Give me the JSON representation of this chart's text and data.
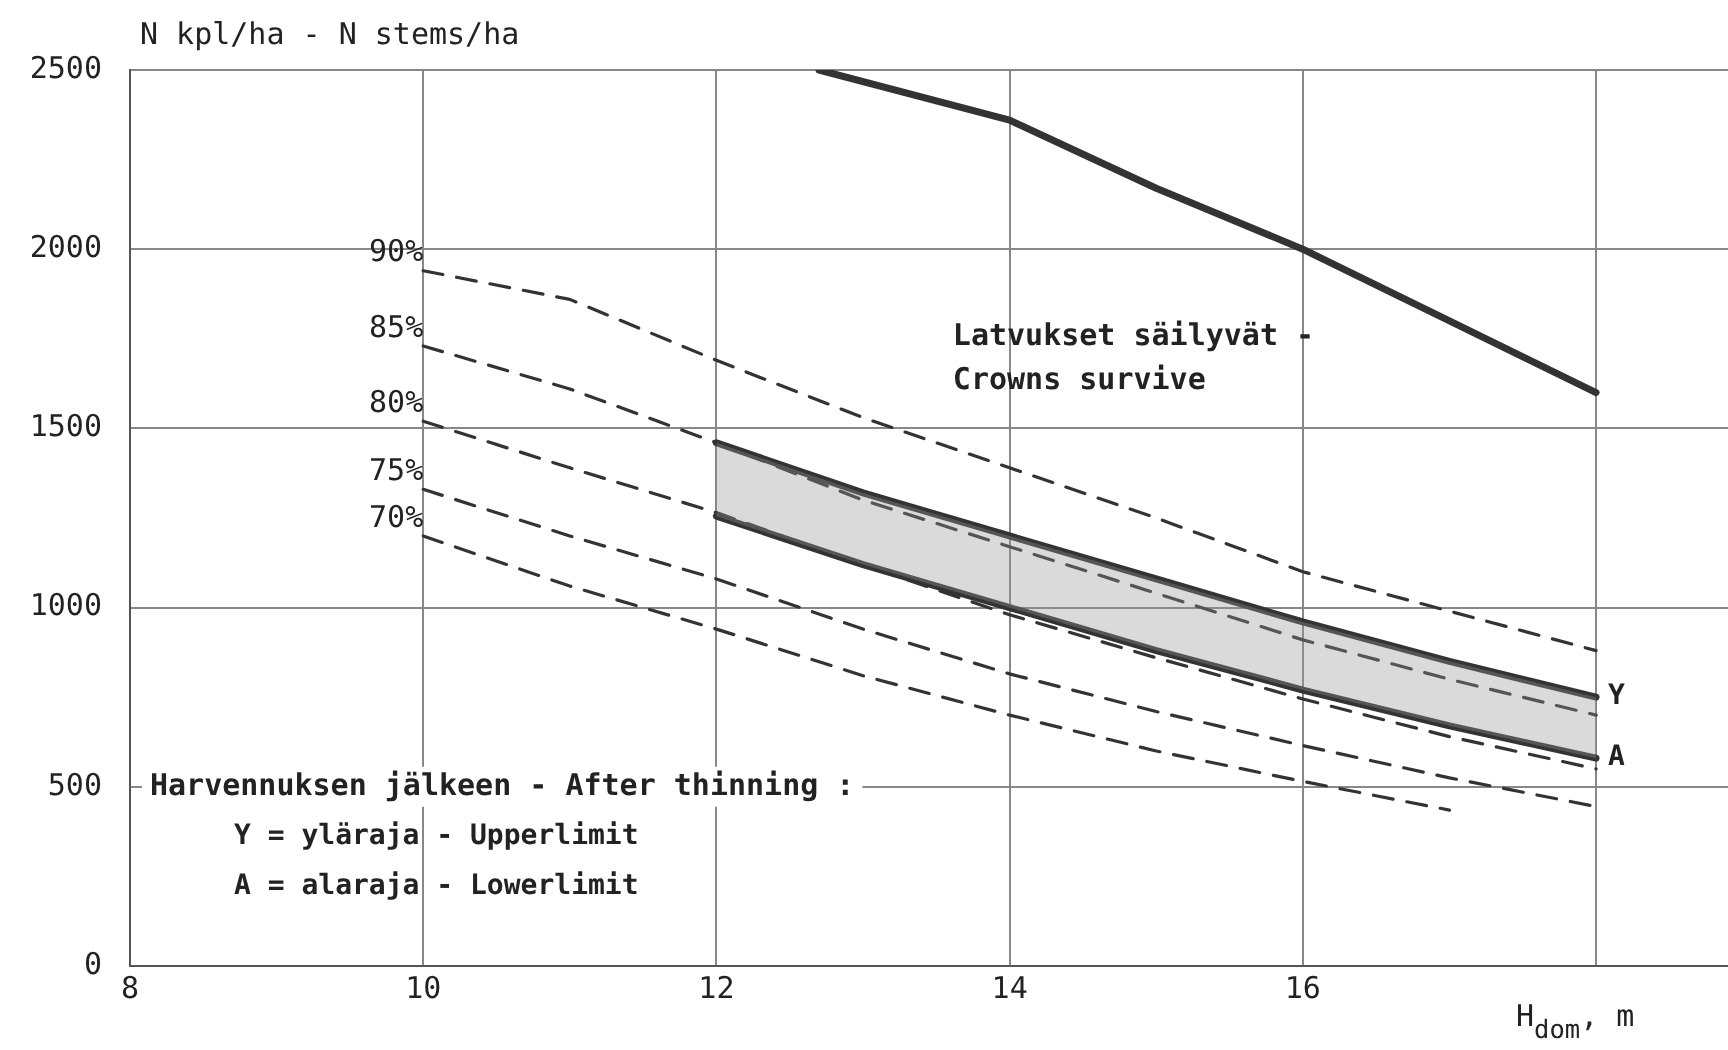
{
  "chart_data": {
    "type": "line",
    "xlabel": "H$_{dom}$, m",
    "ylabel": "N kpl/ha - N stems/ha",
    "xlim": [
      8,
      18.9
    ],
    "xticks": [
      8,
      10,
      12,
      14,
      16,
      {
        "value": 18,
        "label": null
      }
    ],
    "ylim": [
      0,
      2500
    ],
    "yticks": [
      0,
      500,
      1000,
      1500,
      2000,
      2500
    ],
    "grid": true,
    "marker": "none",
    "series": [
      {
        "color": "#333333",
        "line_style": "solid",
        "x": [
          12.7,
          14,
          15,
          16,
          17,
          18
        ],
        "values": [
          2500,
          2360,
          2170,
          2000,
          1800,
          1600
        ]
      },
      {
        "name": "90%",
        "color": "#333333",
        "line_style": "dashed",
        "x": [
          10,
          11,
          12,
          13,
          14,
          15,
          16,
          17,
          18
        ],
        "values": [
          1940,
          1860,
          1690,
          1530,
          1390,
          1250,
          1100,
          990,
          880
        ]
      },
      {
        "name": "85%",
        "color": "#333333",
        "line_style": "dashed",
        "x": [
          10,
          11,
          12,
          13,
          14,
          15,
          16,
          17,
          18
        ],
        "values": [
          1730,
          1610,
          1460,
          1300,
          1170,
          1040,
          910,
          800,
          700
        ]
      },
      {
        "name": "80%",
        "color": "#333333",
        "line_style": "dashed",
        "x": [
          10,
          11,
          12,
          13,
          14,
          15,
          16,
          17,
          18
        ],
        "values": [
          1520,
          1390,
          1265,
          1120,
          980,
          860,
          745,
          640,
          550
        ]
      },
      {
        "name": "75%",
        "color": "#333333",
        "line_style": "dashed",
        "x": [
          10,
          11,
          12,
          13,
          14,
          15,
          16,
          17,
          18
        ],
        "values": [
          1330,
          1200,
          1080,
          940,
          815,
          710,
          615,
          525,
          445
        ]
      },
      {
        "name": "70%",
        "color": "#333333",
        "line_style": "dashed",
        "x": [
          10,
          11,
          12,
          13,
          14,
          15,
          16,
          17
        ],
        "values": [
          1200,
          1060,
          940,
          810,
          700,
          600,
          515,
          435
        ]
      },
      {
        "name": "Y",
        "color": "#333333",
        "line_style": "solid",
        "x": [
          12,
          13,
          14,
          15,
          16,
          17,
          18
        ],
        "values": [
          1460,
          1320,
          1200,
          1080,
          960,
          850,
          750
        ],
        "lower": [
          1255,
          1120,
          1000,
          880,
          770,
          670,
          580
        ],
        "upper": [
          1460,
          1320,
          1200,
          1080,
          960,
          850,
          750
        ]
      },
      {
        "name": "A",
        "color": "#333333",
        "line_style": "solid",
        "x": [
          12,
          13,
          14,
          15,
          16,
          17,
          18
        ],
        "values": [
          1255,
          1120,
          1000,
          880,
          770,
          670,
          580
        ]
      }
    ],
    "annotations": [
      {
        "text": "Latvukset säilyvät - Crowns survive",
        "x": 16,
        "y": 2000
      },
      "Harvennuksen jälkeen - After thinning :",
      "Y = yläraja - Upperlimit",
      "A = alaraja - Lowerlimit"
    ]
  }
}
